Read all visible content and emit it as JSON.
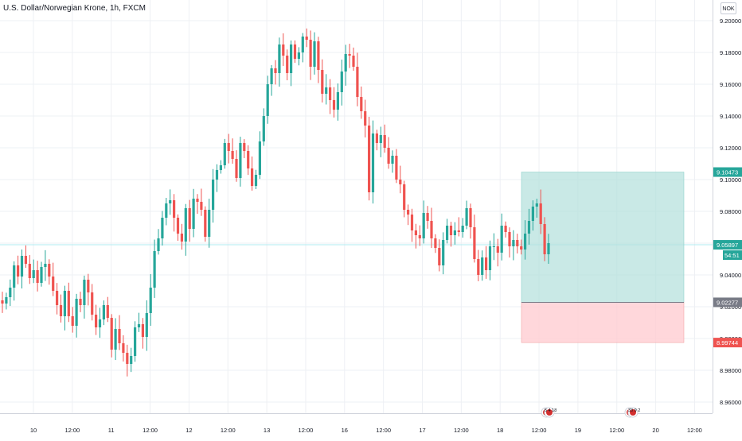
{
  "header": {
    "title": "U.S. Dollar/Norwegian Krone, 1h, FXCM"
  },
  "currency_button": "NOK",
  "price_tags": {
    "target": "9.10473",
    "current": "9.05897",
    "countdown": "54:51",
    "entry": "9.02277",
    "stop": "8.99744"
  },
  "events": [
    {
      "label": "5 4 18"
    },
    {
      "label": "33 9 2"
    }
  ],
  "colors": {
    "up": "#26a69a",
    "down": "#ef5350",
    "profit_zone": "#b2dfdb",
    "loss_zone": "#ffcdd2",
    "grid": "#eef0f4",
    "axis_text": "#131722",
    "current_line": "#b2ebf2",
    "entry_tag": "#787b86"
  },
  "chart_data": {
    "type": "candlestick",
    "symbol": "USD/NOK",
    "timeframe": "1h",
    "ylim": [
      8.953,
      9.213
    ],
    "y_ticks": [
      "8.96000",
      "8.98000",
      "9.00000",
      "9.02000",
      "9.04000",
      "9.06000",
      "9.08000",
      "9.10000",
      "9.12000",
      "9.14000",
      "9.16000",
      "9.18000",
      "9.20000"
    ],
    "x_ticks": [
      "10",
      "12:00",
      "11",
      "12:00",
      "12",
      "12:00",
      "13",
      "12:00",
      "16",
      "12:00",
      "17",
      "12:00",
      "18",
      "12:00",
      "19",
      "12:00",
      "20",
      "12:00"
    ],
    "grid": true,
    "position": {
      "type": "long",
      "target": 9.10473,
      "entry": 9.02277,
      "stop": 8.99744
    },
    "current_price": 9.05897,
    "candles_close": [
      9.022,
      9.026,
      9.032,
      9.046,
      9.039,
      9.052,
      9.047,
      9.038,
      9.043,
      9.035,
      9.045,
      9.047,
      9.039,
      9.03,
      9.021,
      9.014,
      9.03,
      9.014,
      9.008,
      9.025,
      9.021,
      9.037,
      9.029,
      9.015,
      9.007,
      9.012,
      9.021,
      9.013,
      8.993,
      9.006,
      8.997,
      8.991,
      8.984,
      8.989,
      9.007,
      9.009,
      9.001,
      9.016,
      9.032,
      9.055,
      9.063,
      9.076,
      9.085,
      9.087,
      9.076,
      9.066,
      9.061,
      9.082,
      9.069,
      9.088,
      9.086,
      9.081,
      9.064,
      9.081,
      9.1,
      9.106,
      9.109,
      9.123,
      9.118,
      9.113,
      9.101,
      9.123,
      9.118,
      9.107,
      9.096,
      9.103,
      9.124,
      9.14,
      9.16,
      9.17,
      9.167,
      9.185,
      9.178,
      9.167,
      9.185,
      9.176,
      9.18,
      9.19,
      9.188,
      9.171,
      9.187,
      9.169,
      9.154,
      9.158,
      9.15,
      9.144,
      9.155,
      9.168,
      9.179,
      9.178,
      9.171,
      9.152,
      9.143,
      9.134,
      9.092,
      9.129,
      9.123,
      9.128,
      9.12,
      9.11,
      9.115,
      9.1,
      9.097,
      9.081,
      9.078,
      9.068,
      9.065,
      9.063,
      9.079,
      9.074,
      9.063,
      9.057,
      9.046,
      9.062,
      9.071,
      9.065,
      9.068,
      9.067,
      9.071,
      9.082,
      9.07,
      9.05,
      9.04,
      9.051,
      9.043,
      9.058,
      9.058,
      9.054,
      9.071,
      9.067,
      9.058,
      9.062,
      9.058,
      9.056,
      9.066,
      9.074,
      9.083,
      9.085,
      9.072,
      9.053,
      9.06
    ]
  }
}
